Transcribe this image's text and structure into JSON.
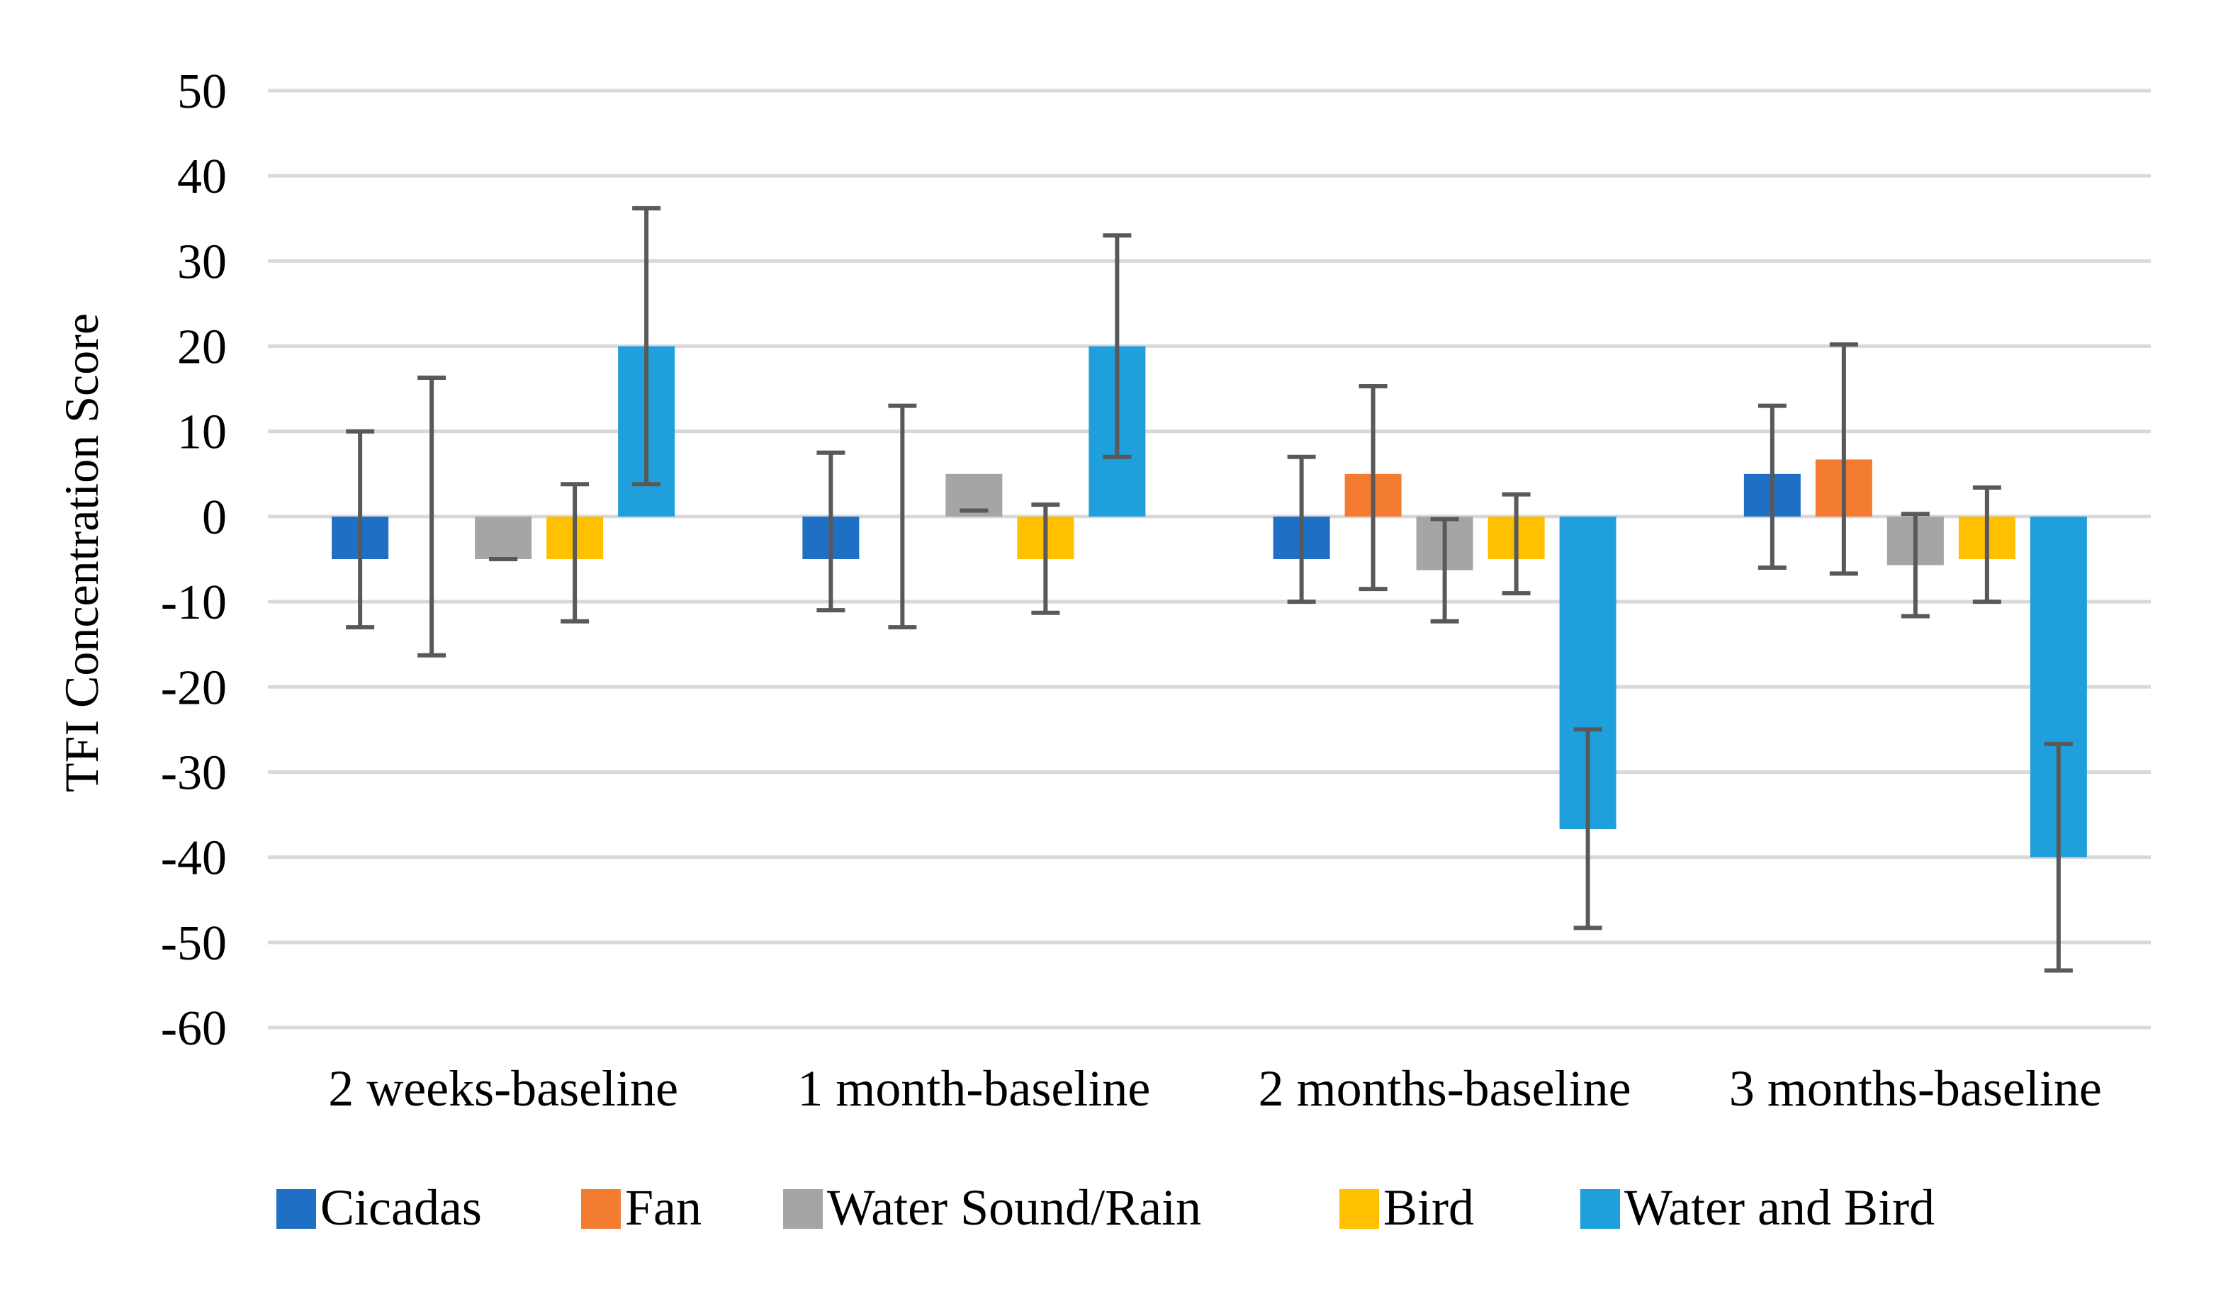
{
  "chart_data": {
    "type": "bar",
    "title": "",
    "xlabel": "",
    "ylabel": "TFI Concentration Score",
    "ylim": [
      -60,
      50
    ],
    "yticks": [
      50,
      40,
      30,
      20,
      10,
      0,
      -10,
      -20,
      -30,
      -40,
      -50,
      -60
    ],
    "grid": true,
    "legend_position": "bottom",
    "categories": [
      "2 weeks-baseline",
      "1 month-baseline",
      "2 months-baseline",
      "3 months-baseline"
    ],
    "series": [
      {
        "name": "Cicadas",
        "color": "#1f6fc5",
        "values": [
          -5,
          -5,
          -5,
          5
        ],
        "err_low": [
          -13,
          -11,
          -10,
          -6
        ],
        "err_high": [
          10,
          7.5,
          7,
          13
        ]
      },
      {
        "name": "Fan",
        "color": "#f47c30",
        "values": [
          0,
          0,
          5,
          6.7
        ],
        "err_low": [
          -16.3,
          -13,
          -8.5,
          -6.7
        ],
        "err_high": [
          16.3,
          13,
          15.3,
          20.2
        ]
      },
      {
        "name": "Water Sound/Rain",
        "color": "#a5a5a5",
        "values": [
          -5,
          5,
          -6.3,
          -5.7
        ],
        "err_low": [
          -5,
          0.7,
          -12.3,
          -11.7
        ],
        "err_high": [
          -5,
          0.7,
          -0.3,
          0.3
        ]
      },
      {
        "name": "Bird",
        "color": "#ffc000",
        "values": [
          -5,
          -5,
          -5,
          -5
        ],
        "err_low": [
          -12.3,
          -11.3,
          -9,
          -10
        ],
        "err_high": [
          3.8,
          1.4,
          2.6,
          3.4
        ]
      },
      {
        "name": "Water and Bird",
        "color": "#1f9fdc",
        "values": [
          20,
          20,
          -36.7,
          -40
        ],
        "err_low": [
          3.8,
          7,
          -48.3,
          -53.3
        ],
        "err_high": [
          36.2,
          33,
          -25,
          -26.7
        ]
      }
    ]
  }
}
